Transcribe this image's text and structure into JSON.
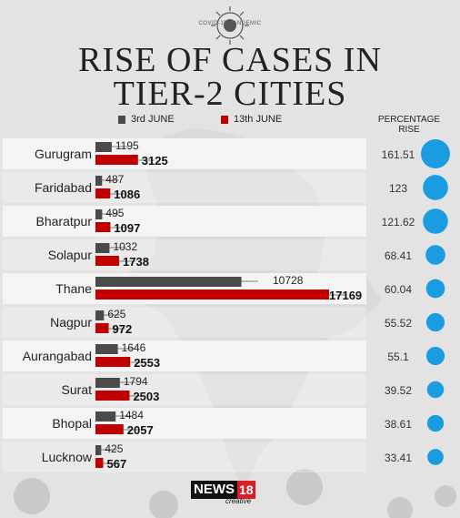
{
  "badge": "COVID-19 PANDEMIC",
  "title_line1": "RISE OF CASES IN",
  "title_line2": "TIER-2 CITIES",
  "legend": {
    "s1": "3rd JUNE",
    "s2": "13th JUNE"
  },
  "pct_header": [
    "PERCENTAGE",
    "RISE"
  ],
  "logo": {
    "main": "NEWS",
    "num": "18",
    "sub": "creative"
  },
  "colors": {
    "s1": "#4a4a4a",
    "s2": "#c00000",
    "bubble": "#1a9de0",
    "row_light": "#f4f4f4"
  },
  "chart_data": {
    "type": "bar",
    "orientation": "horizontal",
    "categories": [
      "Gurugram",
      "Faridabad",
      "Bharatpur",
      "Solapur",
      "Thane",
      "Nagpur",
      "Aurangabad",
      "Surat",
      "Bhopal",
      "Lucknow"
    ],
    "series": [
      {
        "name": "3rd JUNE",
        "values": [
          1195,
          487,
          495,
          1032,
          10728,
          625,
          1646,
          1794,
          1484,
          425
        ]
      },
      {
        "name": "13th JUNE",
        "values": [
          3125,
          1086,
          1097,
          1738,
          17169,
          972,
          2553,
          2503,
          2057,
          567
        ]
      }
    ],
    "percentage_rise": [
      "161.51",
      "123",
      "121.62",
      "68.41",
      "60.04",
      "55.52",
      "55.1",
      "39.52",
      "38.61",
      "33.41"
    ]
  }
}
